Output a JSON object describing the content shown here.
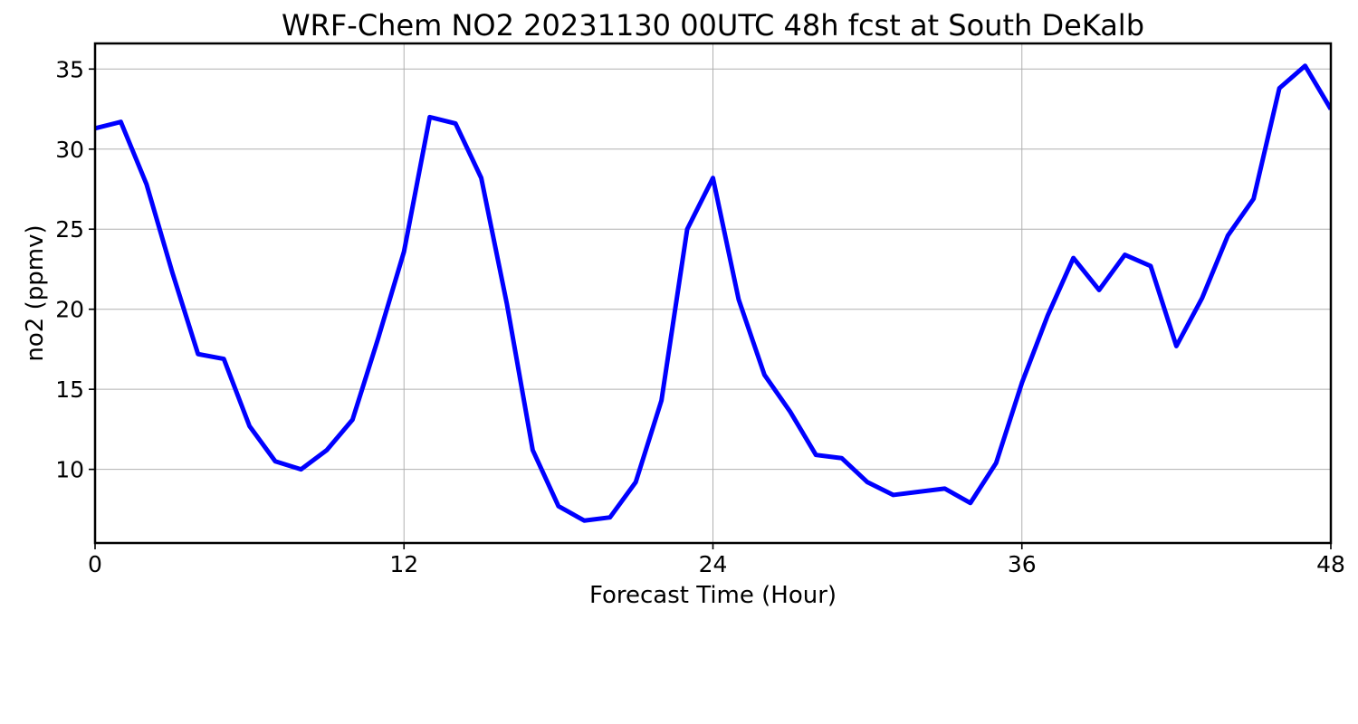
{
  "chart_data": {
    "type": "line",
    "title": "WRF-Chem NO2  20231130 00UTC 48h fcst at South DeKalb",
    "xlabel": "Forecast Time (Hour)",
    "ylabel": "no2  (ppmv)",
    "xlim": [
      0,
      48
    ],
    "ylim": [
      5.4,
      36.6
    ],
    "xticks": [
      "0",
      "12",
      "24",
      "36",
      "48"
    ],
    "xtick_values": [
      0,
      12,
      24,
      36,
      48
    ],
    "yticks": [
      "10",
      "15",
      "20",
      "25",
      "30",
      "35"
    ],
    "ytick_values": [
      10,
      15,
      20,
      25,
      30,
      35
    ],
    "grid": true,
    "series": [
      {
        "color": "#0000ff",
        "x": [
          0,
          1,
          2,
          3,
          4,
          5,
          6,
          7,
          8,
          9,
          10,
          11,
          12,
          13,
          14,
          15,
          16,
          17,
          18,
          19,
          20,
          21,
          22,
          23,
          24,
          25,
          26,
          27,
          28,
          29,
          30,
          31,
          32,
          33,
          34,
          35,
          36,
          37,
          38,
          39,
          40,
          41,
          42,
          43,
          44,
          45,
          46,
          47,
          48
        ],
        "values": [
          31.3,
          31.7,
          27.8,
          22.3,
          17.2,
          16.9,
          12.7,
          10.5,
          10.0,
          11.2,
          13.1,
          18.2,
          23.6,
          32.0,
          31.6,
          28.2,
          20.3,
          11.2,
          7.7,
          6.8,
          7.0,
          9.2,
          14.3,
          25.0,
          28.2,
          20.6,
          15.9,
          13.6,
          10.9,
          10.7,
          9.2,
          8.4,
          8.6,
          8.8,
          7.9,
          10.4,
          15.4,
          19.6,
          23.2,
          21.2,
          23.4,
          22.7,
          17.7,
          20.7,
          24.6,
          26.9,
          33.8,
          35.2,
          32.5
        ]
      }
    ]
  }
}
